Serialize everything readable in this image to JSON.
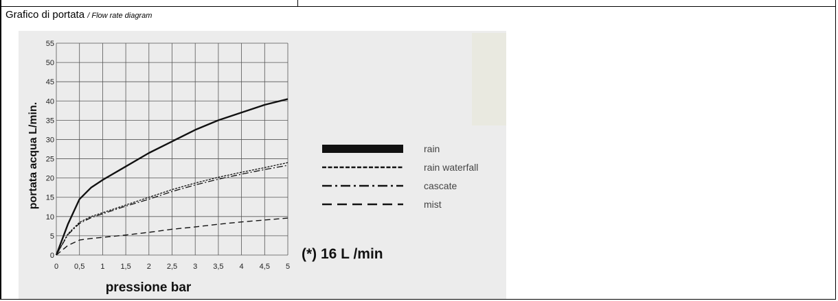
{
  "header": {
    "title": "Grafico di portata",
    "subtitle": "/ Flow rate diagram"
  },
  "note": "(*) 16 L /min",
  "chart_data": {
    "type": "line",
    "title": "Grafico di portata / Flow rate diagram",
    "xlabel": "pressione bar",
    "ylabel": "portata acqua  L/min.",
    "xlim": [
      0,
      5
    ],
    "ylim": [
      0,
      55
    ],
    "xticks": [
      0,
      0.5,
      1,
      1.5,
      2,
      2.5,
      3,
      3.5,
      4,
      4.5,
      5
    ],
    "xtick_labels": [
      "0",
      "0,5",
      "1",
      "1,5",
      "2",
      "2,5",
      "3",
      "3,5",
      "4",
      "4,5",
      "5"
    ],
    "yticks": [
      0,
      5,
      10,
      15,
      20,
      25,
      30,
      35,
      40,
      45,
      50,
      55
    ],
    "ytick_labels": [
      "0",
      "5",
      "10",
      "15",
      "20",
      "25",
      "30",
      "35",
      "40",
      "45",
      "50",
      "55"
    ],
    "grid": true,
    "legend_position": "right",
    "series": [
      {
        "name": "rain",
        "style": "solid-thick",
        "x": [
          0,
          0.25,
          0.5,
          0.75,
          1,
          1.5,
          2,
          2.5,
          3,
          3.5,
          4,
          4.5,
          5
        ],
        "y": [
          0,
          8,
          14.5,
          17.5,
          19.5,
          23,
          26.5,
          29.5,
          32.5,
          35,
          37,
          39,
          40.5
        ]
      },
      {
        "name": "rain waterfall",
        "style": "dotted",
        "x": [
          0,
          0.25,
          0.5,
          0.75,
          1,
          1.5,
          2,
          2.5,
          3,
          3.5,
          4,
          4.5,
          5
        ],
        "y": [
          0,
          5.5,
          8.5,
          10,
          11,
          13,
          15,
          17,
          18.7,
          20.2,
          21.5,
          22.7,
          24
        ]
      },
      {
        "name": "cascate",
        "style": "dash-dot",
        "x": [
          0,
          0.25,
          0.5,
          0.75,
          1,
          1.5,
          2,
          2.5,
          3,
          3.5,
          4,
          4.5,
          5
        ],
        "y": [
          0,
          5.3,
          8.2,
          9.7,
          10.7,
          12.7,
          14.5,
          16.5,
          18.2,
          19.7,
          21,
          22.2,
          23.3
        ]
      },
      {
        "name": "mist",
        "style": "dashed",
        "x": [
          0,
          0.25,
          0.5,
          0.75,
          1,
          1.5,
          2,
          2.5,
          3,
          3.5,
          4,
          4.5,
          5
        ],
        "y": [
          0,
          2.5,
          3.9,
          4.3,
          4.6,
          5.2,
          5.9,
          6.7,
          7.3,
          8.0,
          8.6,
          9.1,
          9.6
        ]
      }
    ]
  }
}
